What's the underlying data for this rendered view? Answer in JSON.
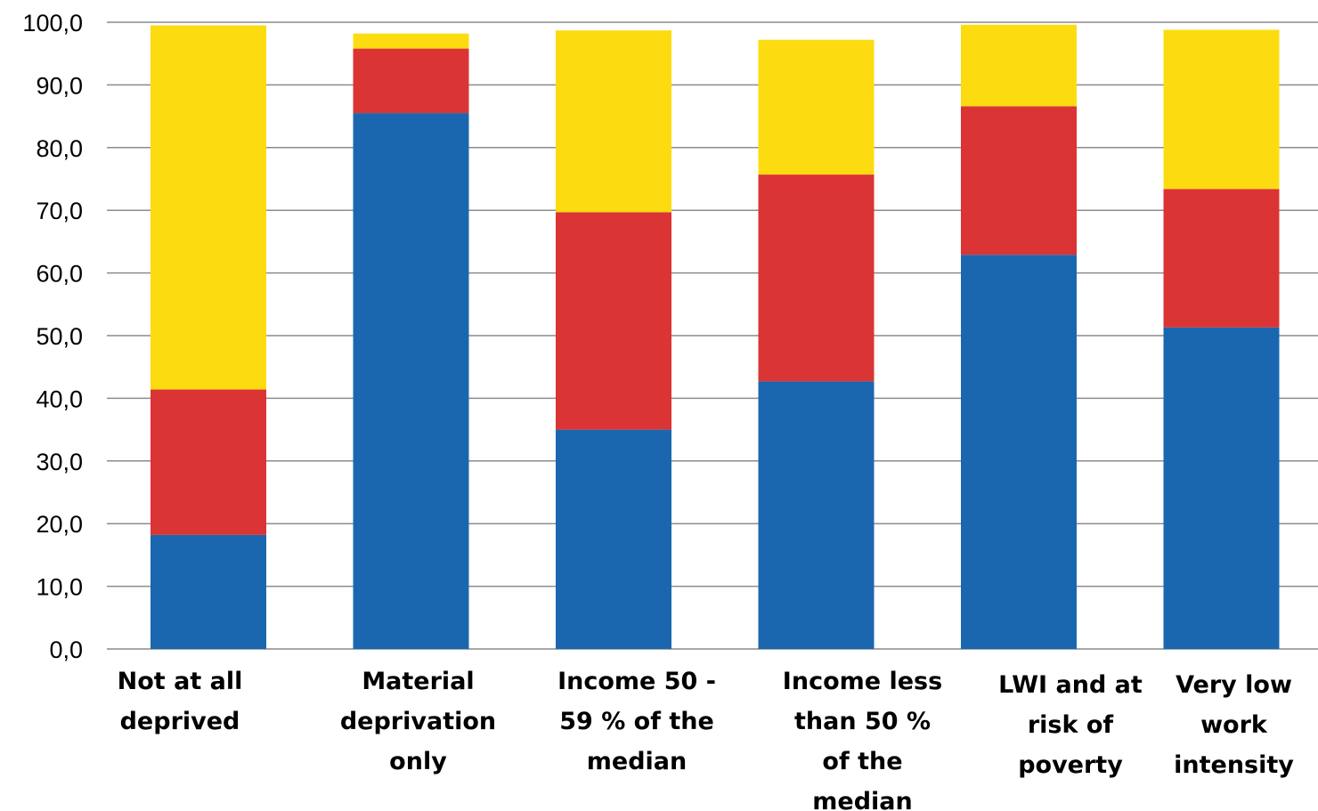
{
  "chart_data": {
    "type": "bar",
    "stacked": true,
    "categories": [
      [
        "Not at all",
        "deprived"
      ],
      [
        "Material",
        "deprivation",
        "only"
      ],
      [
        "Income 50 -",
        "59 % of the",
        "median"
      ],
      [
        "Income less",
        "than 50 %",
        "of the",
        "median"
      ],
      [
        "LWI and at",
        "risk of",
        "poverty"
      ],
      [
        "Very low",
        "work",
        "intensity"
      ]
    ],
    "series": [
      {
        "color": "#1a67b0",
        "values": [
          18.2,
          85.5,
          35.0,
          42.7,
          62.9,
          51.3
        ]
      },
      {
        "color": "#db3434",
        "values": [
          23.2,
          10.3,
          34.7,
          33.0,
          23.7,
          22.1
        ]
      },
      {
        "color": "#fcdc10",
        "values": [
          58.1,
          2.4,
          29.0,
          21.5,
          13.0,
          25.4
        ]
      }
    ],
    "ylim": [
      0,
      100
    ],
    "yticks": [
      "0,0",
      "10,0",
      "20,0",
      "30,0",
      "40,0",
      "50,0",
      "60,0",
      "70,0",
      "80,0",
      "90,0",
      "100,0"
    ],
    "grid": true,
    "title": "",
    "xlabel": "",
    "ylabel": ""
  }
}
